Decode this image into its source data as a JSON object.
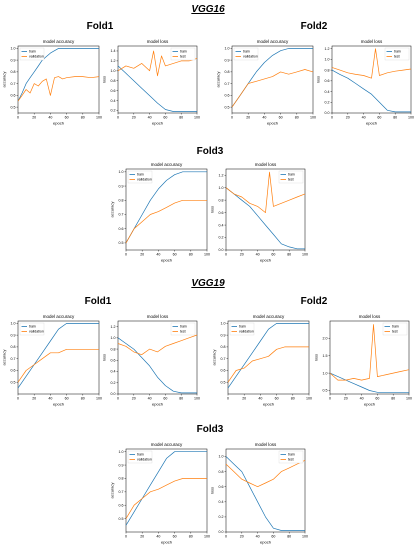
{
  "sections": [
    {
      "title": "VGG16",
      "folds": [
        "Fold1",
        "Fold2",
        "Fold3"
      ]
    },
    {
      "title": "VGG19",
      "folds": [
        "Fold1",
        "Fold2",
        "Fold3"
      ]
    }
  ],
  "colors": {
    "train": "#1f77b4",
    "validation": "#ff7f0e"
  },
  "chart_data": [
    {
      "id": "vgg16-fold1-acc",
      "type": "line",
      "title": "model accuracy",
      "xlabel": "epoch",
      "ylabel": "accuracy",
      "xticks": [
        "0",
        "20",
        "40",
        "60",
        "80",
        "100"
      ],
      "yticks": [
        "0.5",
        "0.6",
        "0.7",
        "0.8",
        "0.9",
        "1.0"
      ],
      "xlim": [
        0,
        100
      ],
      "ylim": [
        0.45,
        1.02
      ],
      "legend": "top-left",
      "series": [
        {
          "name": "train",
          "x": [
            0,
            5,
            10,
            15,
            20,
            25,
            30,
            35,
            40,
            45,
            50,
            55,
            60,
            100
          ],
          "y": [
            0.55,
            0.62,
            0.7,
            0.75,
            0.8,
            0.85,
            0.9,
            0.93,
            0.96,
            0.98,
            1.0,
            1.0,
            1.0,
            1.0
          ]
        },
        {
          "name": "validation",
          "x": [
            0,
            5,
            10,
            15,
            20,
            25,
            30,
            35,
            40,
            45,
            50,
            55,
            60,
            70,
            80,
            90,
            100
          ],
          "y": [
            0.55,
            0.6,
            0.65,
            0.62,
            0.7,
            0.68,
            0.72,
            0.74,
            0.6,
            0.75,
            0.76,
            0.74,
            0.75,
            0.76,
            0.76,
            0.75,
            0.76
          ]
        }
      ]
    },
    {
      "id": "vgg16-fold1-loss",
      "type": "line",
      "title": "model loss",
      "xlabel": "epoch",
      "ylabel": "loss",
      "xticks": [
        "0",
        "20",
        "40",
        "60",
        "80",
        "100"
      ],
      "yticks": [
        "0.2",
        "0.4",
        "0.6",
        "0.8",
        "1.0",
        "1.2",
        "1.4"
      ],
      "xlim": [
        0,
        100
      ],
      "ylim": [
        0.15,
        1.5
      ],
      "legend": "top-right",
      "series": [
        {
          "name": "train",
          "x": [
            0,
            10,
            20,
            30,
            40,
            50,
            60,
            70,
            80,
            90,
            100
          ],
          "y": [
            1.1,
            0.95,
            0.8,
            0.65,
            0.5,
            0.35,
            0.22,
            0.18,
            0.18,
            0.18,
            0.18
          ]
        },
        {
          "name": "test",
          "x": [
            0,
            10,
            20,
            30,
            40,
            45,
            50,
            55,
            60,
            70,
            80,
            90,
            100
          ],
          "y": [
            1.0,
            1.1,
            1.05,
            1.15,
            1.0,
            1.4,
            0.9,
            1.3,
            1.1,
            1.15,
            1.2,
            1.2,
            1.25
          ]
        }
      ]
    },
    {
      "id": "vgg16-fold2-acc",
      "type": "line",
      "title": "model accuracy",
      "xlabel": "epoch",
      "ylabel": "accuracy",
      "xticks": [
        "0",
        "20",
        "40",
        "60",
        "80",
        "100"
      ],
      "yticks": [
        "0.5",
        "0.6",
        "0.7",
        "0.8",
        "0.9",
        "1.0"
      ],
      "xlim": [
        0,
        100
      ],
      "ylim": [
        0.45,
        1.02
      ],
      "legend": "top-left",
      "series": [
        {
          "name": "train",
          "x": [
            0,
            10,
            20,
            30,
            40,
            50,
            60,
            70,
            80,
            90,
            100
          ],
          "y": [
            0.5,
            0.6,
            0.7,
            0.8,
            0.88,
            0.94,
            0.98,
            1.0,
            1.0,
            1.0,
            1.0
          ]
        },
        {
          "name": "validation",
          "x": [
            0,
            10,
            20,
            30,
            40,
            50,
            60,
            70,
            80,
            90,
            100
          ],
          "y": [
            0.5,
            0.6,
            0.7,
            0.72,
            0.74,
            0.76,
            0.8,
            0.78,
            0.8,
            0.82,
            0.8
          ]
        }
      ]
    },
    {
      "id": "vgg16-fold2-loss",
      "type": "line",
      "title": "model loss",
      "xlabel": "epoch",
      "ylabel": "loss",
      "xticks": [
        "0",
        "20",
        "40",
        "60",
        "80",
        "100"
      ],
      "yticks": [
        "0.0",
        "0.2",
        "0.4",
        "0.6",
        "0.8",
        "1.0",
        "1.2"
      ],
      "xlim": [
        0,
        100
      ],
      "ylim": [
        0.0,
        1.25
      ],
      "legend": "top-right",
      "series": [
        {
          "name": "train",
          "x": [
            0,
            10,
            20,
            30,
            40,
            50,
            60,
            70,
            80,
            90,
            100
          ],
          "y": [
            0.8,
            0.72,
            0.65,
            0.55,
            0.45,
            0.35,
            0.2,
            0.05,
            0.02,
            0.02,
            0.02
          ]
        },
        {
          "name": "test",
          "x": [
            0,
            10,
            20,
            30,
            40,
            50,
            55,
            60,
            70,
            80,
            90,
            100
          ],
          "y": [
            0.85,
            0.8,
            0.75,
            0.72,
            0.7,
            0.65,
            1.2,
            0.7,
            0.75,
            0.78,
            0.8,
            0.82
          ]
        }
      ]
    },
    {
      "id": "vgg16-fold3-acc",
      "type": "line",
      "title": "model accuracy",
      "xlabel": "epoch",
      "ylabel": "accuracy",
      "xticks": [
        "0",
        "20",
        "40",
        "60",
        "80",
        "100"
      ],
      "yticks": [
        "0.5",
        "0.6",
        "0.7",
        "0.8",
        "0.9",
        "1.0"
      ],
      "xlim": [
        0,
        100
      ],
      "ylim": [
        0.45,
        1.02
      ],
      "legend": "top-left",
      "series": [
        {
          "name": "train",
          "x": [
            0,
            10,
            20,
            30,
            40,
            50,
            60,
            70,
            80,
            90,
            100
          ],
          "y": [
            0.5,
            0.6,
            0.7,
            0.8,
            0.88,
            0.94,
            0.98,
            1.0,
            1.0,
            1.0,
            1.0
          ]
        },
        {
          "name": "validation",
          "x": [
            0,
            10,
            20,
            30,
            40,
            50,
            60,
            70,
            80,
            90,
            100
          ],
          "y": [
            0.5,
            0.6,
            0.65,
            0.7,
            0.72,
            0.75,
            0.78,
            0.8,
            0.8,
            0.8,
            0.8
          ]
        }
      ]
    },
    {
      "id": "vgg16-fold3-loss",
      "type": "line",
      "title": "model loss",
      "xlabel": "epoch",
      "ylabel": "loss",
      "xticks": [
        "0",
        "20",
        "40",
        "60",
        "80",
        "100"
      ],
      "yticks": [
        "0.0",
        "0.2",
        "0.4",
        "0.6",
        "0.8",
        "1.0",
        "1.2"
      ],
      "xlim": [
        0,
        100
      ],
      "ylim": [
        0.0,
        1.3
      ],
      "legend": "top-right",
      "series": [
        {
          "name": "train",
          "x": [
            0,
            10,
            20,
            30,
            40,
            50,
            60,
            70,
            80,
            90,
            100
          ],
          "y": [
            1.0,
            0.9,
            0.8,
            0.7,
            0.55,
            0.4,
            0.25,
            0.1,
            0.05,
            0.02,
            0.02
          ]
        },
        {
          "name": "test",
          "x": [
            0,
            10,
            20,
            30,
            40,
            50,
            55,
            60,
            70,
            80,
            90,
            100
          ],
          "y": [
            1.0,
            0.9,
            0.85,
            0.75,
            0.7,
            0.6,
            1.25,
            0.7,
            0.75,
            0.8,
            0.85,
            0.9
          ]
        }
      ]
    },
    {
      "id": "vgg19-fold1-acc",
      "type": "line",
      "title": "model accuracy",
      "xlabel": "epoch",
      "ylabel": "accuracy",
      "xticks": [
        "0",
        "20",
        "40",
        "60",
        "80",
        "100"
      ],
      "yticks": [
        "0.5",
        "0.6",
        "0.7",
        "0.8",
        "0.9",
        "1.0"
      ],
      "xlim": [
        0,
        100
      ],
      "ylim": [
        0.4,
        1.02
      ],
      "legend": "top-left",
      "series": [
        {
          "name": "train",
          "x": [
            0,
            10,
            20,
            30,
            40,
            50,
            60,
            70,
            80,
            90,
            100
          ],
          "y": [
            0.45,
            0.55,
            0.65,
            0.75,
            0.85,
            0.95,
            1.0,
            1.0,
            1.0,
            1.0,
            1.0
          ]
        },
        {
          "name": "validation",
          "x": [
            0,
            10,
            20,
            30,
            40,
            50,
            60,
            70,
            80,
            90,
            100
          ],
          "y": [
            0.5,
            0.6,
            0.65,
            0.7,
            0.75,
            0.75,
            0.78,
            0.78,
            0.78,
            0.78,
            0.78
          ]
        }
      ]
    },
    {
      "id": "vgg19-fold1-loss",
      "type": "line",
      "title": "model loss",
      "xlabel": "epoch",
      "ylabel": "loss",
      "xticks": [
        "0",
        "20",
        "40",
        "60",
        "80",
        "100"
      ],
      "yticks": [
        "0.0",
        "0.2",
        "0.4",
        "0.6",
        "0.8",
        "1.0",
        "1.2"
      ],
      "xlim": [
        0,
        100
      ],
      "ylim": [
        0.0,
        1.3
      ],
      "legend": "top-right",
      "series": [
        {
          "name": "train",
          "x": [
            0,
            10,
            20,
            30,
            40,
            50,
            60,
            70,
            80,
            90,
            100
          ],
          "y": [
            1.0,
            0.9,
            0.8,
            0.65,
            0.5,
            0.3,
            0.15,
            0.05,
            0.02,
            0.02,
            0.02
          ]
        },
        {
          "name": "test",
          "x": [
            0,
            10,
            20,
            30,
            40,
            50,
            60,
            70,
            80,
            90,
            100
          ],
          "y": [
            0.9,
            0.85,
            0.75,
            0.7,
            0.8,
            0.75,
            0.85,
            0.9,
            0.95,
            1.0,
            1.05
          ]
        }
      ]
    },
    {
      "id": "vgg19-fold2-acc",
      "type": "line",
      "title": "model accuracy",
      "xlabel": "epoch",
      "ylabel": "accuracy",
      "xticks": [
        "0",
        "20",
        "40",
        "60",
        "80",
        "100"
      ],
      "yticks": [
        "0.5",
        "0.6",
        "0.7",
        "0.8",
        "0.9",
        "1.0"
      ],
      "xlim": [
        0,
        100
      ],
      "ylim": [
        0.4,
        1.02
      ],
      "legend": "top-left",
      "series": [
        {
          "name": "train",
          "x": [
            0,
            10,
            20,
            30,
            40,
            50,
            60,
            70,
            80,
            90,
            100
          ],
          "y": [
            0.45,
            0.55,
            0.65,
            0.75,
            0.85,
            0.95,
            1.0,
            1.0,
            1.0,
            1.0,
            1.0
          ]
        },
        {
          "name": "validation",
          "x": [
            0,
            10,
            20,
            30,
            40,
            50,
            60,
            70,
            80,
            90,
            100
          ],
          "y": [
            0.5,
            0.6,
            0.62,
            0.68,
            0.7,
            0.72,
            0.78,
            0.8,
            0.8,
            0.8,
            0.8
          ]
        }
      ]
    },
    {
      "id": "vgg19-fold2-loss",
      "type": "line",
      "title": "model loss",
      "xlabel": "epoch",
      "ylabel": "loss",
      "xticks": [
        "0",
        "20",
        "40",
        "60",
        "80",
        "100"
      ],
      "yticks": [
        "0.5",
        "1.0",
        "1.5",
        "2.0"
      ],
      "xlim": [
        0,
        100
      ],
      "ylim": [
        0.4,
        2.5
      ],
      "legend": "top-right",
      "series": [
        {
          "name": "train",
          "x": [
            0,
            10,
            20,
            30,
            40,
            50,
            60,
            70,
            80,
            90,
            100
          ],
          "y": [
            1.0,
            0.9,
            0.8,
            0.7,
            0.6,
            0.5,
            0.45,
            0.45,
            0.45,
            0.45,
            0.45
          ]
        },
        {
          "name": "test",
          "x": [
            0,
            10,
            20,
            30,
            40,
            50,
            55,
            60,
            70,
            80,
            90,
            100
          ],
          "y": [
            1.0,
            0.8,
            0.8,
            0.85,
            0.8,
            0.85,
            2.4,
            0.9,
            0.95,
            1.0,
            1.05,
            1.1
          ]
        }
      ]
    },
    {
      "id": "vgg19-fold3-acc",
      "type": "line",
      "title": "model accuracy",
      "xlabel": "epoch",
      "ylabel": "accuracy",
      "xticks": [
        "0",
        "20",
        "40",
        "60",
        "80",
        "100"
      ],
      "yticks": [
        "0.5",
        "0.6",
        "0.7",
        "0.8",
        "0.9",
        "1.0"
      ],
      "xlim": [
        0,
        100
      ],
      "ylim": [
        0.4,
        1.02
      ],
      "legend": "top-left",
      "series": [
        {
          "name": "train",
          "x": [
            0,
            10,
            20,
            30,
            40,
            50,
            60,
            70,
            80,
            90,
            100
          ],
          "y": [
            0.45,
            0.55,
            0.65,
            0.75,
            0.85,
            0.95,
            1.0,
            1.0,
            1.0,
            1.0,
            1.0
          ]
        },
        {
          "name": "validation",
          "x": [
            0,
            10,
            20,
            30,
            40,
            50,
            60,
            70,
            80,
            90,
            100
          ],
          "y": [
            0.5,
            0.6,
            0.65,
            0.7,
            0.72,
            0.75,
            0.78,
            0.8,
            0.8,
            0.8,
            0.8
          ]
        }
      ]
    },
    {
      "id": "vgg19-fold3-loss",
      "type": "line",
      "title": "model loss",
      "xlabel": "epoch",
      "ylabel": "loss",
      "xticks": [
        "0",
        "20",
        "40",
        "60",
        "80",
        "100"
      ],
      "yticks": [
        "0.0",
        "0.2",
        "0.4",
        "0.6",
        "0.8",
        "1.0"
      ],
      "xlim": [
        0,
        100
      ],
      "ylim": [
        0.0,
        1.1
      ],
      "legend": "top-right",
      "series": [
        {
          "name": "train",
          "x": [
            0,
            10,
            20,
            30,
            40,
            50,
            60,
            70,
            80,
            90,
            100
          ],
          "y": [
            1.0,
            0.9,
            0.8,
            0.6,
            0.4,
            0.2,
            0.05,
            0.02,
            0.02,
            0.02,
            0.02
          ]
        },
        {
          "name": "test",
          "x": [
            0,
            10,
            20,
            30,
            40,
            50,
            60,
            70,
            80,
            90,
            100
          ],
          "y": [
            0.9,
            0.8,
            0.7,
            0.65,
            0.6,
            0.65,
            0.7,
            0.8,
            0.85,
            0.9,
            0.95
          ]
        }
      ]
    }
  ]
}
